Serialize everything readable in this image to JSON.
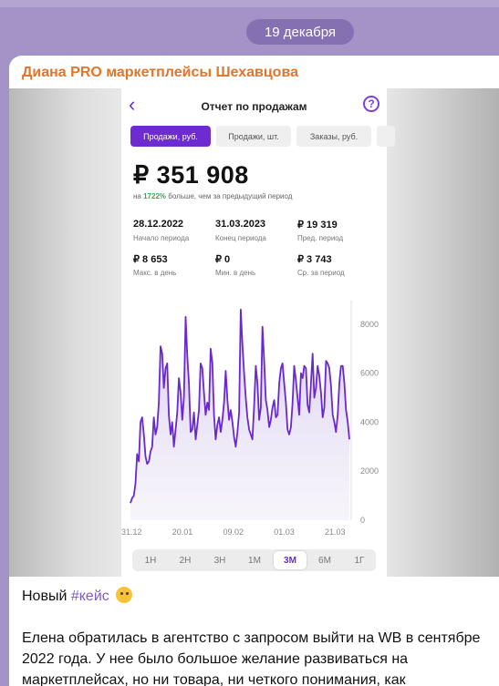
{
  "date_badge": "19 декабря",
  "post": {
    "sender": "Диана PRO маркетплейсы Шехавцова",
    "text_intro": "Новый ",
    "hashtag": "#кейс",
    "emoji_icon": "thinking-face-icon",
    "paragraph": "Елена обратилась в агентство с запросом выйти на WB в сентябре 2022 года. У нее было большое желание развиваться на маркетплейсах, но ни товара, ни четкого понимания, как"
  },
  "report": {
    "back_icon": "chevron-left-icon",
    "title": "Отчет по продажам",
    "help_icon": "question-circle-icon",
    "tabs": [
      "Продажи, руб.",
      "Продажи, шт.",
      "Заказы, руб."
    ],
    "active_tab": "Продажи, руб.",
    "total": "₽ 351 908",
    "compare_prefix": "на ",
    "compare_pct": "1722%",
    "compare_suffix": " больше, чем за предыдущий период",
    "stats": [
      {
        "value": "28.12.2022",
        "label": "Начало периода"
      },
      {
        "value": "31.03.2023",
        "label": "Конец периода"
      },
      {
        "value": "₽ 19 319",
        "label": "Пред. период"
      },
      {
        "value": "₽ 8 653",
        "label": "Макс. в день"
      },
      {
        "value": "₽ 0",
        "label": "Мин. в день"
      },
      {
        "value": "₽ 3 743",
        "label": "Ср. за период"
      }
    ],
    "periods": [
      "1Н",
      "2Н",
      "3Н",
      "1М",
      "3М",
      "6М",
      "1Г"
    ],
    "active_period": "3М",
    "accent_color": "#6e2bcf",
    "positive_color": "#2fae4e"
  },
  "chart_data": {
    "type": "area",
    "x_tick_labels": [
      "31.12",
      "20.01",
      "09.02",
      "01.03",
      "21.03"
    ],
    "y_tick_labels": [
      "8000",
      "6000",
      "4000",
      "2000",
      "0"
    ],
    "ylim": [
      0,
      9000
    ],
    "series": [
      {
        "values": [
          700,
          900,
          1000,
          1500,
          2700,
          2400,
          4000,
          4200,
          3500,
          2600,
          2300,
          2400,
          2800,
          3000,
          4200,
          3500,
          3800,
          4800,
          7100,
          6800,
          5400,
          6200,
          6400,
          4300,
          3500,
          4000,
          3000,
          3700,
          4400,
          5800,
          5200,
          4100,
          5000,
          8300,
          6700,
          5600,
          3600,
          3700,
          4400,
          3300,
          3900,
          4500,
          6400,
          6200,
          5200,
          4300,
          4800,
          4500,
          7000,
          6400,
          4300,
          3300,
          3900,
          4200,
          3600,
          4100,
          4800,
          6100,
          4900,
          4100,
          4500,
          4000,
          3400,
          3000,
          3600,
          4400,
          8600,
          7200,
          6000,
          5000,
          4200,
          3700,
          3500,
          3300,
          4700,
          6300,
          5600,
          4100,
          4600,
          7900,
          6500,
          4900,
          4500,
          3800,
          4100,
          4600,
          4900,
          4200,
          4300,
          5600,
          6200,
          6400,
          5600,
          4800,
          3700,
          3500,
          3800,
          4800,
          6300,
          5700,
          5000,
          4300,
          6000,
          5800,
          6300,
          6200,
          4700,
          4400,
          5600,
          6800,
          5000,
          5400,
          6300,
          5900,
          5200,
          4200,
          4600,
          6500,
          6400,
          6200,
          5500,
          4300,
          4000,
          3600,
          4300,
          5600,
          6300,
          6300,
          5600,
          4500,
          4000,
          3300
        ]
      }
    ],
    "x_range_label_start": "28.12.2022",
    "x_range_label_end": "31.03.2023"
  }
}
